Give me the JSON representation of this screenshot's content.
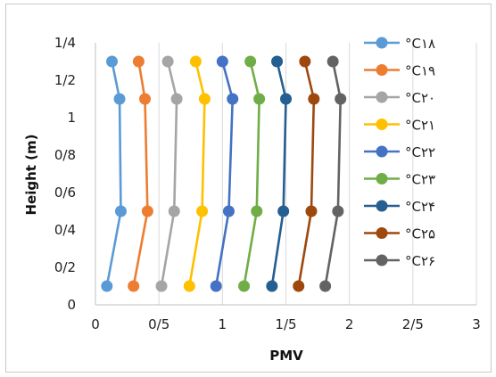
{
  "chart_data": {
    "type": "line",
    "xlabel": "PMV",
    "ylabel": "Height (m)",
    "xlim": [
      0,
      3
    ],
    "ylim": [
      0,
      1.4
    ],
    "x_ticks": [
      "0",
      "0/5",
      "1",
      "1/5",
      "2",
      "2/5",
      "3"
    ],
    "y_ticks": [
      "0",
      "0/2",
      "0/4",
      "0/6",
      "0/8",
      "1",
      "1/2",
      "1/4"
    ],
    "grid": "vertical",
    "legend_position": "right",
    "series": [
      {
        "name": "°C۱۸",
        "color": "#5b9bd5",
        "x": [
          0.09,
          0.2,
          0.19,
          0.13
        ],
        "y": [
          0.1,
          0.5,
          1.1,
          1.3
        ]
      },
      {
        "name": "°C۱۹",
        "color": "#ed7d31",
        "x": [
          0.3,
          0.41,
          0.39,
          0.34
        ],
        "y": [
          0.1,
          0.5,
          1.1,
          1.3
        ]
      },
      {
        "name": "°C۲۰",
        "color": "#a5a5a5",
        "x": [
          0.52,
          0.62,
          0.64,
          0.57
        ],
        "y": [
          0.1,
          0.5,
          1.1,
          1.3
        ]
      },
      {
        "name": "°C۲۱",
        "color": "#ffc000",
        "x": [
          0.74,
          0.84,
          0.86,
          0.79
        ],
        "y": [
          0.1,
          0.5,
          1.1,
          1.3
        ]
      },
      {
        "name": "°C۲۲",
        "color": "#4472c4",
        "x": [
          0.95,
          1.05,
          1.08,
          1.0
        ],
        "y": [
          0.1,
          0.5,
          1.1,
          1.3
        ]
      },
      {
        "name": "°C۲۳",
        "color": "#70ad47",
        "x": [
          1.17,
          1.27,
          1.29,
          1.22
        ],
        "y": [
          0.1,
          0.5,
          1.1,
          1.3
        ]
      },
      {
        "name": "°C۲۴",
        "color": "#255e91",
        "x": [
          1.39,
          1.48,
          1.5,
          1.43
        ],
        "y": [
          0.1,
          0.5,
          1.1,
          1.3
        ]
      },
      {
        "name": "°C۲۵",
        "color": "#9e480e",
        "x": [
          1.6,
          1.7,
          1.72,
          1.65
        ],
        "y": [
          0.1,
          0.5,
          1.1,
          1.3
        ]
      },
      {
        "name": "°C۲۶",
        "color": "#636363",
        "x": [
          1.81,
          1.91,
          1.93,
          1.87
        ],
        "y": [
          0.1,
          0.5,
          1.1,
          1.3
        ]
      }
    ]
  }
}
